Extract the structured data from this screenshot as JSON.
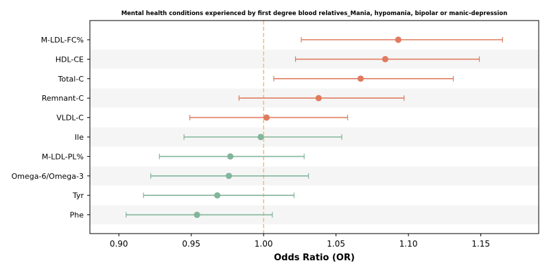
{
  "chart_data": {
    "type": "forest",
    "title": "Mental health conditions experienced by first degree blood relatives_Mania, hypomania, bipolar or manic-depression",
    "xlabel": "Odds Ratio (OR)",
    "ylabel": "",
    "xlim": [
      0.88,
      1.19
    ],
    "xticks": [
      "0.90",
      "0.95",
      "1.00",
      "1.05",
      "1.10",
      "1.15"
    ],
    "reference_line": 1.0,
    "grid": false,
    "colors": {
      "positive": "#e07b5f",
      "negative": "#82b59a",
      "reference": "#f5c07a",
      "band": "#f5f5f5"
    },
    "rows": [
      {
        "label": "M-LDL-FC%",
        "or": 1.093,
        "lo": 1.026,
        "hi": 1.165,
        "group": "positive"
      },
      {
        "label": "HDL-CE",
        "or": 1.084,
        "lo": 1.022,
        "hi": 1.149,
        "group": "positive"
      },
      {
        "label": "Total-C",
        "or": 1.067,
        "lo": 1.007,
        "hi": 1.131,
        "group": "positive"
      },
      {
        "label": "Remnant-C",
        "or": 1.038,
        "lo": 0.983,
        "hi": 1.097,
        "group": "positive"
      },
      {
        "label": "VLDL-C",
        "or": 1.002,
        "lo": 0.949,
        "hi": 1.058,
        "group": "positive"
      },
      {
        "label": "Ile",
        "or": 0.998,
        "lo": 0.945,
        "hi": 1.054,
        "group": "negative"
      },
      {
        "label": "M-LDL-PL%",
        "or": 0.977,
        "lo": 0.928,
        "hi": 1.028,
        "group": "negative"
      },
      {
        "label": "Omega-6/Omega-3",
        "or": 0.976,
        "lo": 0.922,
        "hi": 1.031,
        "group": "negative"
      },
      {
        "label": "Tyr",
        "or": 0.968,
        "lo": 0.917,
        "hi": 1.021,
        "group": "negative"
      },
      {
        "label": "Phe",
        "or": 0.954,
        "lo": 0.905,
        "hi": 1.006,
        "group": "negative"
      }
    ]
  }
}
